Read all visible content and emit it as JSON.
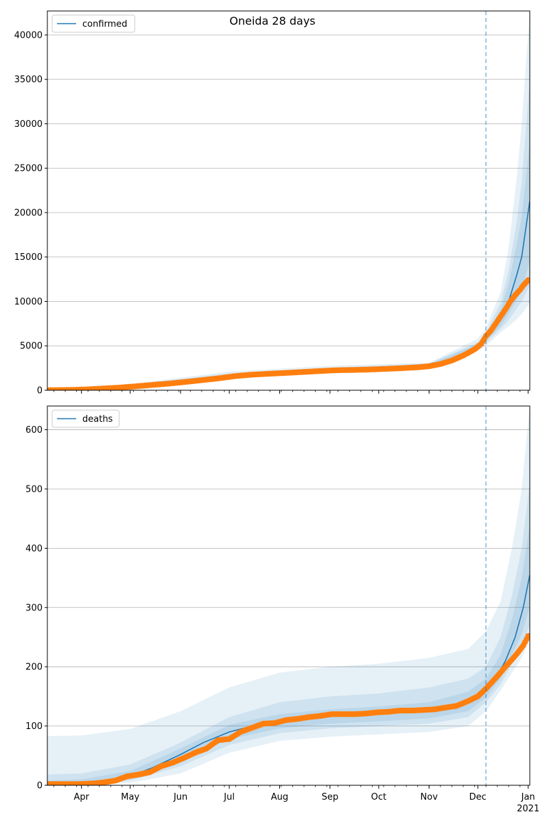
{
  "figure_title": "Oneida 28 days",
  "colors": {
    "model_line": "#1f77b4",
    "observed_points": "#ff7f0e",
    "band": "#1f77b4",
    "grid": "#b0b0b0",
    "forecast_line": "#1f77b4"
  },
  "x_axis": {
    "tick_labels": [
      "Apr",
      "May",
      "Jun",
      "Jul",
      "Aug",
      "Sep",
      "Oct",
      "Nov",
      "Dec",
      "Jan"
    ],
    "year_label": "2021",
    "xlim": [
      "2020-03-11",
      "2021-01-02"
    ]
  },
  "chart_data": [
    {
      "type": "line",
      "panel": "top",
      "legend": "confirmed",
      "legend_position": "top-left",
      "grid": "horizontal",
      "ylim": [
        0,
        42700
      ],
      "yticks": [
        0,
        5000,
        10000,
        15000,
        20000,
        25000,
        30000,
        35000,
        40000
      ],
      "forecast_start": "2020-12-06",
      "model": {
        "x": [
          "2020-03-11",
          "2020-04-01",
          "2020-05-01",
          "2020-06-01",
          "2020-07-01",
          "2020-08-01",
          "2020-09-01",
          "2020-10-01",
          "2020-11-01",
          "2020-11-15",
          "2020-11-25",
          "2020-12-01",
          "2020-12-06",
          "2020-12-10",
          "2020-12-15",
          "2020-12-20",
          "2020-12-25",
          "2020-12-28",
          "2021-01-02"
        ],
        "y": [
          20,
          80,
          550,
          1100,
          1650,
          2050,
          2280,
          2450,
          2850,
          3400,
          4300,
          5000,
          5900,
          6700,
          8000,
          10000,
          13000,
          15000,
          21300
        ]
      },
      "bands": [
        {
          "x": [
            "2020-03-11",
            "2020-05-01",
            "2020-07-01",
            "2020-09-01",
            "2020-11-01",
            "2020-12-01",
            "2020-12-06",
            "2020-12-15",
            "2020-12-20",
            "2020-12-25",
            "2020-12-28",
            "2021-01-02"
          ],
          "upper": [
            60,
            700,
            2100,
            2750,
            3100,
            5800,
            7000,
            11000,
            16000,
            24000,
            30000,
            42700
          ],
          "lower": [
            0,
            400,
            1300,
            1950,
            2600,
            4400,
            5000,
            6500,
            7200,
            8000,
            8600,
            9800
          ]
        },
        {
          "x": [
            "2020-03-11",
            "2020-05-01",
            "2020-07-01",
            "2020-09-01",
            "2020-11-01",
            "2020-12-01",
            "2020-12-06",
            "2020-12-15",
            "2020-12-20",
            "2020-12-25",
            "2020-12-28",
            "2021-01-02"
          ],
          "upper": [
            40,
            620,
            1900,
            2550,
            3000,
            5400,
            6500,
            9800,
            13500,
            19000,
            23500,
            35000
          ],
          "lower": [
            5,
            470,
            1450,
            2080,
            2700,
            4650,
            5300,
            6900,
            7900,
            9200,
            10000,
            11800
          ]
        },
        {
          "x": [
            "2020-03-11",
            "2020-05-01",
            "2020-07-01",
            "2020-09-01",
            "2020-11-01",
            "2020-12-01",
            "2020-12-06",
            "2020-12-15",
            "2020-12-20",
            "2020-12-25",
            "2020-12-28",
            "2021-01-02"
          ],
          "upper": [
            30,
            590,
            1800,
            2420,
            2950,
            5200,
            6200,
            9000,
            12000,
            16500,
            19500,
            28000
          ],
          "lower": [
            10,
            510,
            1520,
            2150,
            2760,
            4800,
            5600,
            7200,
            8600,
            10200,
            11300,
            14500
          ]
        }
      ],
      "observed": {
        "x": [
          "2020-03-11",
          "2020-03-25",
          "2020-04-05",
          "2020-04-15",
          "2020-04-25",
          "2020-05-05",
          "2020-05-15",
          "2020-05-25",
          "2020-06-05",
          "2020-06-15",
          "2020-06-25",
          "2020-07-05",
          "2020-07-15",
          "2020-07-25",
          "2020-08-05",
          "2020-08-15",
          "2020-08-25",
          "2020-09-05",
          "2020-09-15",
          "2020-09-25",
          "2020-10-05",
          "2020-10-15",
          "2020-10-25",
          "2020-11-01",
          "2020-11-08",
          "2020-11-15",
          "2020-11-22",
          "2020-11-29",
          "2020-12-03",
          "2020-12-06",
          "2020-12-09",
          "2020-12-12",
          "2020-12-15",
          "2020-12-18",
          "2020-12-21",
          "2020-12-24",
          "2020-12-27",
          "2020-12-29",
          "2021-01-01"
        ],
        "y": [
          10,
          30,
          100,
          200,
          300,
          450,
          600,
          750,
          950,
          1150,
          1350,
          1600,
          1750,
          1850,
          1950,
          2050,
          2150,
          2250,
          2280,
          2330,
          2400,
          2480,
          2580,
          2700,
          2950,
          3350,
          3900,
          4600,
          5200,
          6100,
          6700,
          7500,
          8300,
          9100,
          10000,
          10700,
          11300,
          11800,
          12400
        ]
      }
    },
    {
      "type": "line",
      "panel": "bottom",
      "legend": "deaths",
      "legend_position": "top-left",
      "grid": "horizontal",
      "ylim": [
        0,
        640
      ],
      "yticks": [
        0,
        100,
        200,
        300,
        400,
        500,
        600
      ],
      "forecast_start": "2020-12-06",
      "model": {
        "x": [
          "2020-03-11",
          "2020-04-01",
          "2020-04-15",
          "2020-05-01",
          "2020-05-15",
          "2020-06-01",
          "2020-06-15",
          "2020-07-01",
          "2020-07-15",
          "2020-08-01",
          "2020-08-15",
          "2020-09-01",
          "2020-09-15",
          "2020-10-01",
          "2020-10-15",
          "2020-11-01",
          "2020-11-15",
          "2020-12-01",
          "2020-12-06",
          "2020-12-12",
          "2020-12-18",
          "2020-12-24",
          "2020-12-29",
          "2021-01-02"
        ],
        "y": [
          0,
          2,
          6,
          15,
          30,
          52,
          72,
          90,
          100,
          107,
          112,
          116,
          119,
          122,
          124,
          127,
          135,
          150,
          160,
          180,
          210,
          250,
          300,
          355
        ]
      },
      "bands": [
        {
          "x": [
            "2020-03-11",
            "2020-04-01",
            "2020-05-01",
            "2020-06-01",
            "2020-07-01",
            "2020-08-01",
            "2020-09-01",
            "2020-10-01",
            "2020-11-01",
            "2020-11-25",
            "2020-12-06",
            "2020-12-15",
            "2020-12-22",
            "2020-12-28",
            "2021-01-02"
          ],
          "upper": [
            83,
            84,
            95,
            125,
            165,
            190,
            200,
            205,
            215,
            230,
            260,
            310,
            400,
            500,
            640
          ],
          "lower": [
            0,
            0,
            4,
            20,
            55,
            75,
            82,
            86,
            90,
            100,
            125,
            160,
            190,
            215,
            245
          ]
        },
        {
          "x": [
            "2020-03-11",
            "2020-04-01",
            "2020-05-01",
            "2020-06-01",
            "2020-07-01",
            "2020-08-01",
            "2020-09-01",
            "2020-10-01",
            "2020-11-01",
            "2020-11-25",
            "2020-12-06",
            "2020-12-15",
            "2020-12-22",
            "2020-12-28",
            "2021-01-02"
          ],
          "upper": [
            18,
            20,
            35,
            72,
            115,
            140,
            150,
            155,
            165,
            180,
            200,
            250,
            320,
            400,
            510
          ],
          "lower": [
            0,
            0,
            8,
            32,
            68,
            88,
            96,
            100,
            104,
            115,
            140,
            170,
            205,
            235,
            270
          ]
        },
        {
          "x": [
            "2020-03-11",
            "2020-04-01",
            "2020-05-01",
            "2020-06-01",
            "2020-07-01",
            "2020-08-01",
            "2020-09-01",
            "2020-10-01",
            "2020-11-01",
            "2020-11-25",
            "2020-12-06",
            "2020-12-15",
            "2020-12-22",
            "2020-12-28",
            "2021-01-02"
          ],
          "upper": [
            8,
            10,
            24,
            62,
            102,
            120,
            128,
            133,
            140,
            158,
            180,
            220,
            280,
            350,
            440
          ],
          "lower": [
            0,
            0,
            11,
            40,
            78,
            96,
            104,
            108,
            113,
            125,
            148,
            180,
            220,
            255,
            300
          ]
        }
      ],
      "observed": {
        "x": [
          "2020-03-11",
          "2020-03-20",
          "2020-03-30",
          "2020-04-08",
          "2020-04-15",
          "2020-04-22",
          "2020-04-29",
          "2020-05-06",
          "2020-05-13",
          "2020-05-20",
          "2020-05-27",
          "2020-06-03",
          "2020-06-10",
          "2020-06-17",
          "2020-06-24",
          "2020-07-01",
          "2020-07-08",
          "2020-07-15",
          "2020-07-22",
          "2020-07-29",
          "2020-08-05",
          "2020-08-12",
          "2020-08-19",
          "2020-08-26",
          "2020-09-02",
          "2020-09-09",
          "2020-09-16",
          "2020-09-23",
          "2020-09-30",
          "2020-10-07",
          "2020-10-14",
          "2020-10-21",
          "2020-10-28",
          "2020-11-04",
          "2020-11-11",
          "2020-11-18",
          "2020-11-25",
          "2020-12-01",
          "2020-12-06",
          "2020-12-10",
          "2020-12-14",
          "2020-12-18",
          "2020-12-22",
          "2020-12-26",
          "2020-12-29",
          "2021-01-01"
        ],
        "y": [
          2,
          2,
          2,
          3,
          5,
          8,
          15,
          18,
          22,
          32,
          38,
          46,
          55,
          62,
          76,
          78,
          90,
          97,
          104,
          105,
          110,
          112,
          115,
          117,
          120,
          120,
          120,
          121,
          123,
          124,
          126,
          126,
          127,
          128,
          131,
          134,
          142,
          150,
          163,
          175,
          187,
          200,
          212,
          225,
          236,
          252
        ]
      }
    }
  ]
}
